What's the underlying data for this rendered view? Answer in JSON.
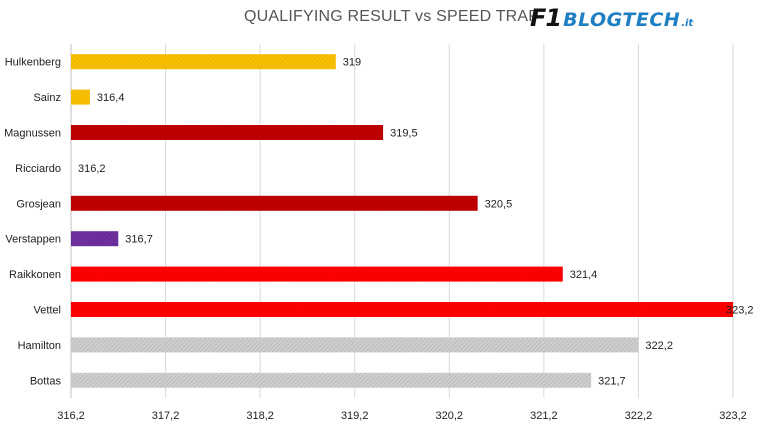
{
  "title": "QUALIFYING RESULT vs SPEED TRAP",
  "logo": {
    "f1": "F1",
    "name": "BLOGTECH",
    "suffix": ".it"
  },
  "chart_data": {
    "type": "bar",
    "orientation": "horizontal",
    "title": "QUALIFYING RESULT vs SPEED TRAP",
    "categories": [
      "Hulkenberg",
      "Sainz",
      "Magnussen",
      "Ricciardo",
      "Grosjean",
      "Verstappen",
      "Raikkonen",
      "Vettel",
      "Hamilton",
      "Bottas"
    ],
    "values": [
      319,
      316.4,
      319.5,
      316.2,
      320.5,
      316.7,
      321.4,
      323.2,
      322.2,
      321.7
    ],
    "value_labels": [
      "319",
      "316,4",
      "319,5",
      "316,2",
      "320,5",
      "316,7",
      "321,4",
      "323,2",
      "322,2",
      "321,7"
    ],
    "colors": [
      "#F5B800",
      "#F5B800",
      "#C00000",
      "#FFFFFF",
      "#C00000",
      "#7030A0",
      "#FF0000",
      "#FF0000",
      "#C9C9C9",
      "#C9C9C9"
    ],
    "xlim": [
      316.2,
      323.2
    ],
    "xticks": [
      316.2,
      317.2,
      318.2,
      319.2,
      320.2,
      321.2,
      322.2,
      323.2
    ],
    "xtick_labels": [
      "316,2",
      "317,2",
      "318,2",
      "319,2",
      "320,2",
      "321,2",
      "322,2",
      "323,2"
    ],
    "xlabel": "",
    "ylabel": "",
    "grid": "vertical"
  }
}
